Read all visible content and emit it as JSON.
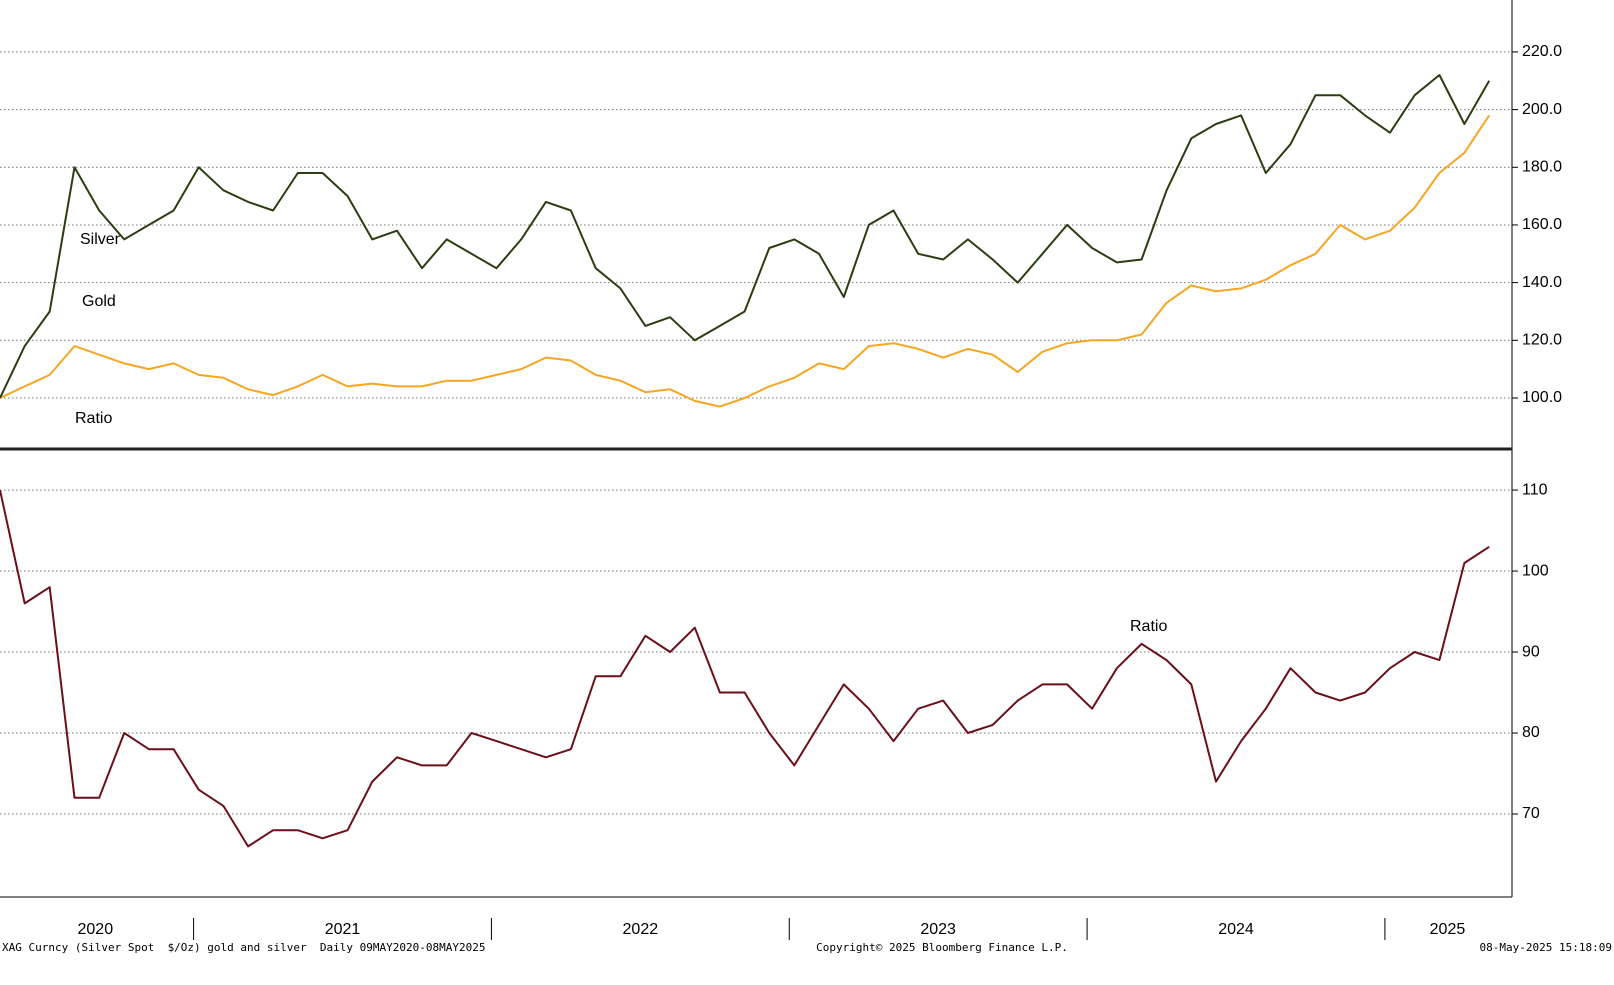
{
  "chart_data": [
    {
      "type": "line",
      "x": [
        2020.35,
        2020.433,
        2020.517,
        2020.6,
        2020.683,
        2020.767,
        2020.85,
        2020.933,
        2021.017,
        2021.1,
        2021.183,
        2021.267,
        2021.35,
        2021.433,
        2021.517,
        2021.6,
        2021.683,
        2021.767,
        2021.85,
        2021.933,
        2022.017,
        2022.1,
        2022.183,
        2022.267,
        2022.35,
        2022.433,
        2022.517,
        2022.6,
        2022.683,
        2022.767,
        2022.85,
        2022.933,
        2023.017,
        2023.1,
        2023.183,
        2023.267,
        2023.35,
        2023.433,
        2023.517,
        2023.6,
        2023.683,
        2023.767,
        2023.85,
        2023.933,
        2024.017,
        2024.1,
        2024.183,
        2024.267,
        2024.35,
        2024.433,
        2024.517,
        2024.6,
        2024.683,
        2024.767,
        2024.85,
        2024.933,
        2025.017,
        2025.1,
        2025.183,
        2025.267,
        2025.35
      ],
      "series": [
        {
          "name": "Silver",
          "color": "#f5a623",
          "legend_color": "#f5a623",
          "values": [
            100,
            104,
            108,
            118,
            115,
            112,
            110,
            112,
            108,
            107,
            103,
            101,
            104,
            108,
            104,
            105,
            104,
            104,
            106,
            106,
            108,
            110,
            114,
            113,
            108,
            106,
            102,
            103,
            99,
            97,
            100,
            104,
            107,
            112,
            110,
            118,
            119,
            117,
            114,
            117,
            115,
            109,
            116,
            119,
            120,
            120,
            122,
            133,
            139,
            137,
            138,
            141,
            146,
            150,
            160,
            155,
            158,
            166,
            178,
            185,
            198
          ]
        },
        {
          "name": "Gold",
          "color": "#2b3d12",
          "legend_color": "#7a1a22",
          "values": [
            100,
            118,
            130,
            180,
            165,
            155,
            160,
            165,
            180,
            172,
            168,
            165,
            178,
            178,
            170,
            155,
            158,
            145,
            155,
            150,
            145,
            155,
            168,
            165,
            145,
            138,
            125,
            128,
            120,
            125,
            130,
            152,
            155,
            150,
            135,
            160,
            165,
            150,
            148,
            155,
            148,
            140,
            150,
            160,
            152,
            147,
            148,
            172,
            190,
            195,
            198,
            178,
            188,
            205,
            205,
            198,
            192,
            205,
            212,
            195,
            210
          ]
        }
      ],
      "ylim": [
        83,
        238
      ],
      "yticks": [
        {
          "value": 100,
          "label": "100.0"
        },
        {
          "value": 120,
          "label": "120.0"
        },
        {
          "value": 140,
          "label": "140.0"
        },
        {
          "value": 160,
          "label": "160.0"
        },
        {
          "value": 180,
          "label": "180.0"
        },
        {
          "value": 200,
          "label": "200.0"
        },
        {
          "value": 220,
          "label": "220.0"
        }
      ],
      "xlim": [
        2020.35,
        2025.42
      ],
      "grid": true
    },
    {
      "type": "line",
      "x": [
        2020.35,
        2020.433,
        2020.517,
        2020.6,
        2020.683,
        2020.767,
        2020.85,
        2020.933,
        2021.017,
        2021.1,
        2021.183,
        2021.267,
        2021.35,
        2021.433,
        2021.517,
        2021.6,
        2021.683,
        2021.767,
        2021.85,
        2021.933,
        2022.017,
        2022.1,
        2022.183,
        2022.267,
        2022.35,
        2022.433,
        2022.517,
        2022.6,
        2022.683,
        2022.767,
        2022.85,
        2022.933,
        2023.017,
        2023.1,
        2023.183,
        2023.267,
        2023.35,
        2023.433,
        2023.517,
        2023.6,
        2023.683,
        2023.767,
        2023.85,
        2023.933,
        2024.017,
        2024.1,
        2024.183,
        2024.267,
        2024.35,
        2024.433,
        2024.517,
        2024.6,
        2024.683,
        2024.767,
        2024.85,
        2024.933,
        2025.017,
        2025.1,
        2025.183,
        2025.267,
        2025.35
      ],
      "series": [
        {
          "name": "Ratio",
          "color": "#6b0f1a",
          "legend_color": "#000000",
          "values": [
            110,
            96,
            98,
            72,
            72,
            80,
            78,
            78,
            73,
            71,
            66,
            68,
            68,
            67,
            68,
            74,
            77,
            76,
            76,
            80,
            79,
            78,
            77,
            78,
            87,
            87,
            92,
            90,
            93,
            85,
            85,
            80,
            76,
            81,
            86,
            83,
            79,
            83,
            84,
            80,
            81,
            84,
            86,
            86,
            83,
            88,
            91,
            89,
            86,
            74,
            79,
            83,
            88,
            85,
            84,
            85,
            88,
            90,
            89,
            101,
            103
          ]
        }
      ],
      "ylim": [
        60,
        114.7
      ],
      "yticks": [
        70,
        80,
        90,
        100,
        110
      ],
      "xlim": [
        2020.35,
        2025.42
      ],
      "xticks": [
        {
          "value": 2020.67,
          "label": "2020"
        },
        {
          "value": 2021.5,
          "label": "2021"
        },
        {
          "value": 2022.5,
          "label": "2022"
        },
        {
          "value": 2023.5,
          "label": "2023"
        },
        {
          "value": 2024.5,
          "label": "2024"
        },
        {
          "value": 2025.21,
          "label": "2025"
        }
      ],
      "xseparators": [
        2021,
        2022,
        2023,
        2024,
        2025
      ],
      "grid": true
    }
  ],
  "footer": {
    "left": "XAG Curncy (Silver Spot  $/Oz) gold and silver  Daily 09MAY2020-08MAY2025",
    "center": "Copyright© 2025 Bloomberg Finance L.P.",
    "right": "08-May-2025 15:18:09"
  }
}
